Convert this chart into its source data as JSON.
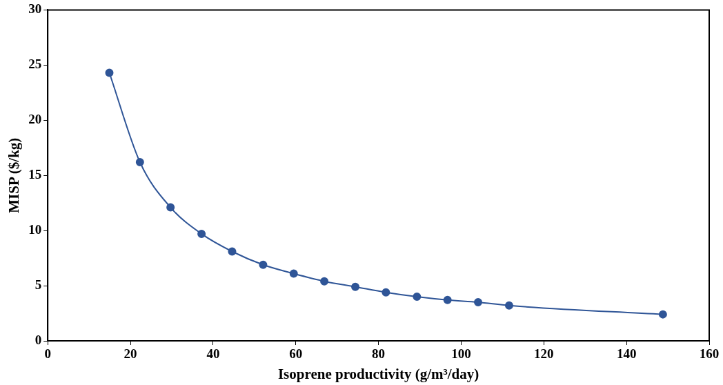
{
  "chart_data": {
    "type": "line",
    "xlabel": "Isoprene productivity (g/m³/day)",
    "ylabel": "MISP ($/kg)",
    "x": [
      14.9,
      22.3,
      29.7,
      37.2,
      44.6,
      52.1,
      59.5,
      66.9,
      74.4,
      81.8,
      89.3,
      96.7,
      104.1,
      111.6,
      148.8
    ],
    "series": [
      {
        "color": "#2f5597",
        "values": [
          24.3,
          16.2,
          12.1,
          9.7,
          8.1,
          6.9,
          6.1,
          5.4,
          4.9,
          4.4,
          4.0,
          3.7,
          3.5,
          3.2,
          2.4
        ]
      }
    ],
    "xlim": [
      0,
      160
    ],
    "xticks": [
      0,
      20,
      40,
      60,
      80,
      100,
      120,
      140,
      160
    ],
    "ylim": [
      0,
      30
    ],
    "yticks": [
      0,
      5,
      10,
      15,
      20,
      25,
      30
    ],
    "marker": "circle",
    "line_style": "solid",
    "grid": false,
    "legend": false
  }
}
